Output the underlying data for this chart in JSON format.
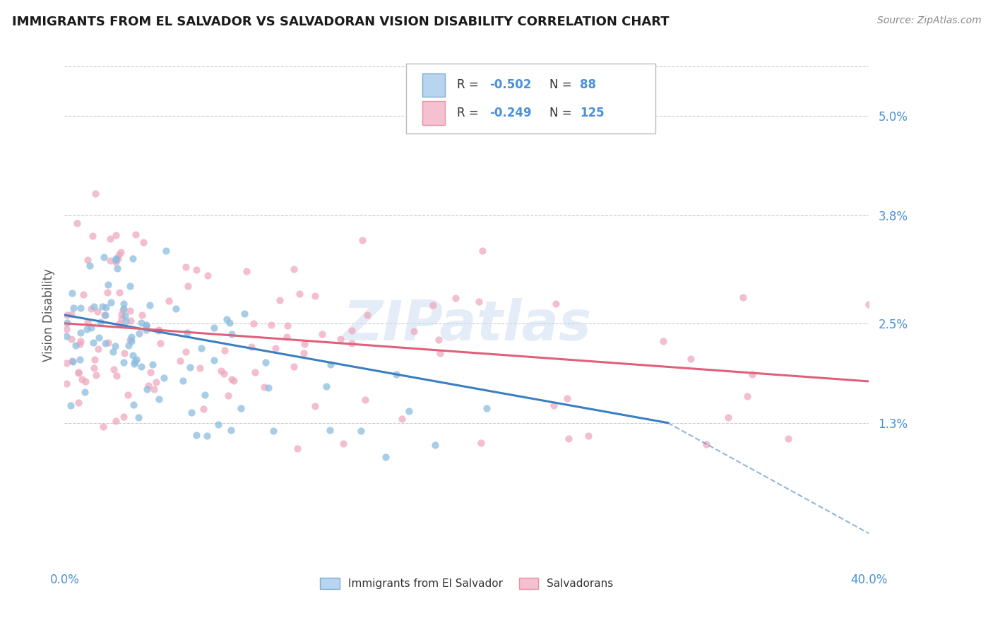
{
  "title": "IMMIGRANTS FROM EL SALVADOR VS SALVADORAN VISION DISABILITY CORRELATION CHART",
  "source_text": "Source: ZipAtlas.com",
  "ylabel": "Vision Disability",
  "xlim": [
    0.0,
    0.4
  ],
  "ylim": [
    -0.004,
    0.056
  ],
  "xticks": [
    0.0,
    0.05,
    0.1,
    0.15,
    0.2,
    0.25,
    0.3,
    0.35,
    0.4
  ],
  "ytick_positions": [
    0.013,
    0.025,
    0.038,
    0.05
  ],
  "yticklabels": [
    "1.3%",
    "2.5%",
    "3.8%",
    "5.0%"
  ],
  "watermark": "ZIPatlas",
  "series1_color": "#8bbde0",
  "series2_color": "#f0a8be",
  "series1_label": "Immigrants from El Salvador",
  "series2_label": "Salvadorans",
  "trend1_color": "#3a7fc1",
  "trend2_color": "#e0607a",
  "background_color": "#ffffff",
  "grid_color": "#cccccc",
  "title_color": "#1a1a1a",
  "axis_label_color": "#555555",
  "tick_color": "#4a90d9",
  "N1": 88,
  "N2": 125,
  "trend1_x0": 0.0,
  "trend1_y0": 0.026,
  "trend1_x1": 0.3,
  "trend1_y1": 0.013,
  "trend1_xdash0": 0.3,
  "trend1_ydash0": 0.013,
  "trend1_xdash1": 0.42,
  "trend1_ydash1": -0.003,
  "trend2_x0": 0.0,
  "trend2_y0": 0.025,
  "trend2_x1": 0.4,
  "trend2_y1": 0.018
}
